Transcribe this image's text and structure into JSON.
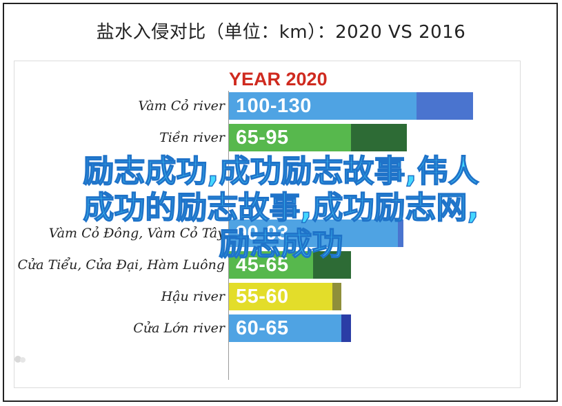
{
  "title": "盐水入侵对比（单位：km）：2020 VS 2016",
  "chart_data": {
    "type": "bar",
    "orientation": "horizontal",
    "title": "盐水入侵对比（单位：km）：2020 VS 2016",
    "legend_title": "YEAR 2020",
    "xlim": [
      0,
      140
    ],
    "categories": [
      "Vàm Cỏ river",
      "Tiền river",
      "",
      "",
      "Vàm Cỏ Đông, Vàm Cỏ Tây",
      "Cửa Tiểu, Cửa Đại, Hàm Luông",
      "Hậu river",
      "Cửa Lớn river"
    ],
    "bars": [
      {
        "label": "100-130",
        "min": 100,
        "max": 130,
        "color_light": "#4fa3e3",
        "color_dark": "#4a74cf"
      },
      {
        "label": "65-95",
        "min": 65,
        "max": 95,
        "color_light": "#57b84d",
        "color_dark": "#2d6b35"
      },
      {
        "label": "",
        "min": 0,
        "max": 0,
        "color_light": "#4fa3e3",
        "color_dark": "#4a74cf"
      },
      {
        "label": "",
        "min": 0,
        "max": 0,
        "color_light": "#4fa3e3",
        "color_dark": "#4a74cf"
      },
      {
        "label": "90-93",
        "min": 90,
        "max": 93,
        "color_light": "#4fa3e3",
        "color_dark": "#4a74cf"
      },
      {
        "label": "45-65",
        "min": 45,
        "max": 65,
        "color_light": "#57b84d",
        "color_dark": "#2d6b35"
      },
      {
        "label": "55-60",
        "min": 55,
        "max": 60,
        "color_light": "#e3dd2a",
        "color_dark": "#8f8f3a"
      },
      {
        "label": "60-65",
        "min": 60,
        "max": 65,
        "color_light": "#4fa3e3",
        "color_dark": "#2b3ea6"
      }
    ]
  },
  "overlay": {
    "line1": "励志成功,成功励志故事,伟人",
    "line2": "成功的励志故事,成功励志网,",
    "line3": "励志成功"
  },
  "colors": {
    "accent_red": "#cf2a1f",
    "overlay_fill": "#45d8ff",
    "overlay_stroke": "#1f73c9"
  }
}
